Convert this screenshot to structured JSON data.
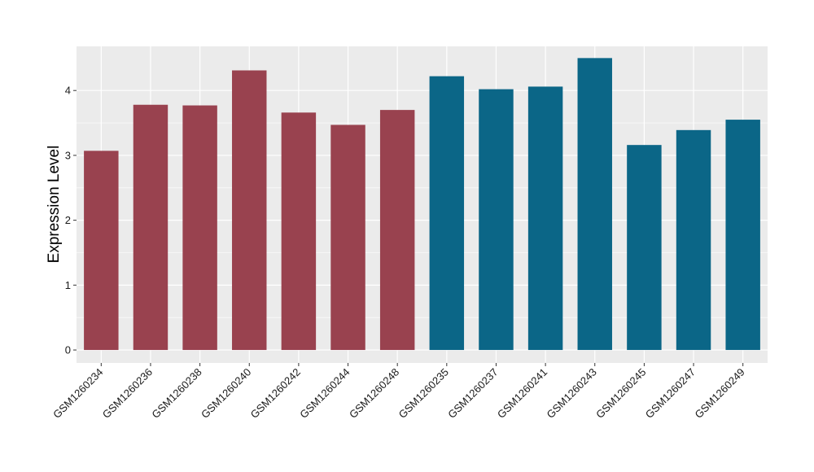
{
  "chart_data": {
    "type": "bar",
    "title": "",
    "xlabel": "",
    "ylabel": "Expression Level",
    "ylim": [
      -0.2,
      4.68
    ],
    "yticks": [
      0,
      1,
      2,
      3,
      4
    ],
    "grid": true,
    "categories": [
      "GSM1260234",
      "GSM1260236",
      "GSM1260238",
      "GSM1260240",
      "GSM1260242",
      "GSM1260244",
      "GSM1260248",
      "GSM1260235",
      "GSM1260237",
      "GSM1260241",
      "GSM1260243",
      "GSM1260245",
      "GSM1260247",
      "GSM1260249"
    ],
    "values": [
      3.07,
      3.78,
      3.77,
      4.31,
      3.66,
      3.47,
      3.7,
      4.22,
      4.02,
      4.06,
      4.5,
      3.16,
      3.39,
      3.55
    ],
    "groups": [
      0,
      0,
      0,
      0,
      0,
      0,
      0,
      1,
      1,
      1,
      1,
      1,
      1,
      1
    ],
    "group_colors": [
      "#99424f",
      "#0b6687"
    ],
    "panel_color": "#ebebeb",
    "grid_color": "#ffffff"
  }
}
